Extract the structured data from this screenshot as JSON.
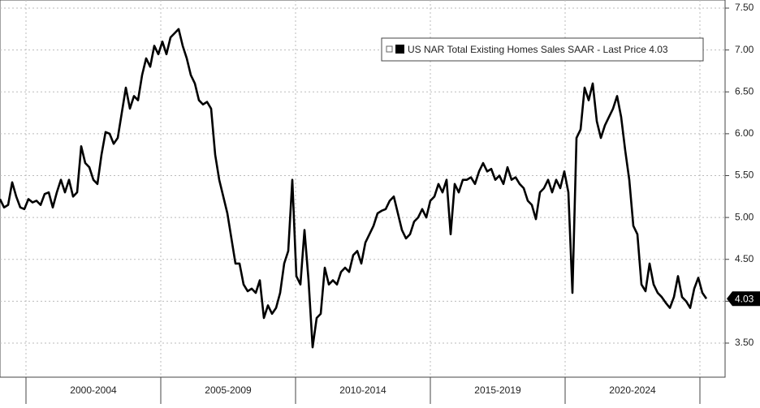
{
  "chart_data": {
    "type": "line",
    "periods": [
      "2000-2004",
      "2005-2009",
      "2010-2014",
      "2015-2019",
      "2020-2024"
    ],
    "series": [
      {
        "name": "US NAR Total Existing Homes Sales SAAR - Last Price 4.03",
        "color": "#000000",
        "values": [
          5.22,
          5.12,
          5.15,
          5.42,
          5.25,
          5.12,
          5.1,
          5.22,
          5.18,
          5.2,
          5.15,
          5.28,
          5.3,
          5.12,
          5.3,
          5.45,
          5.3,
          5.45,
          5.25,
          5.3,
          5.85,
          5.65,
          5.6,
          5.45,
          5.4,
          5.75,
          6.02,
          6.0,
          5.88,
          5.95,
          6.25,
          6.55,
          6.3,
          6.45,
          6.4,
          6.7,
          6.9,
          6.8,
          7.05,
          6.95,
          7.1,
          6.95,
          7.15,
          7.2,
          7.25,
          7.05,
          6.9,
          6.7,
          6.6,
          6.4,
          6.35,
          6.38,
          6.3,
          5.75,
          5.45,
          5.25,
          5.05,
          4.75,
          4.45,
          4.45,
          4.2,
          4.12,
          4.15,
          4.1,
          4.25,
          3.8,
          3.95,
          3.85,
          3.92,
          4.1,
          4.45,
          4.6,
          5.45,
          4.3,
          4.2,
          4.85,
          4.25,
          3.45,
          3.8,
          3.85,
          4.4,
          4.2,
          4.25,
          4.2,
          4.35,
          4.4,
          4.35,
          4.55,
          4.6,
          4.45,
          4.7,
          4.8,
          4.9,
          5.05,
          5.08,
          5.1,
          5.2,
          5.25,
          5.05,
          4.85,
          4.75,
          4.8,
          4.95,
          5.0,
          5.1,
          5.0,
          5.2,
          5.25,
          5.4,
          5.3,
          5.45,
          4.8,
          5.4,
          5.3,
          5.45,
          5.45,
          5.48,
          5.4,
          5.55,
          5.65,
          5.55,
          5.58,
          5.45,
          5.5,
          5.4,
          5.6,
          5.45,
          5.48,
          5.4,
          5.35,
          5.2,
          5.15,
          4.98,
          5.3,
          5.35,
          5.45,
          5.3,
          5.45,
          5.35,
          5.55,
          5.3,
          4.1,
          5.95,
          6.05,
          6.55,
          6.4,
          6.6,
          6.15,
          5.95,
          6.1,
          6.2,
          6.3,
          6.45,
          6.2,
          5.8,
          5.45,
          4.9,
          4.8,
          4.2,
          4.12,
          4.45,
          4.2,
          4.1,
          4.05,
          3.98,
          3.92,
          4.05,
          4.3,
          4.05,
          4.0,
          3.92,
          4.15,
          4.28,
          4.1,
          4.03
        ]
      }
    ],
    "ylim": [
      3.093,
      7.597
    ],
    "yticks": [
      {
        "value": 3.5,
        "label": "3.50"
      },
      {
        "value": 4,
        "label": "4.00"
      },
      {
        "value": 4.5,
        "label": "4.50"
      },
      {
        "value": 5,
        "label": "5.00"
      },
      {
        "value": 5.5,
        "label": "5.50"
      },
      {
        "value": 6,
        "label": "6.00"
      },
      {
        "value": 6.5,
        "label": "6.50"
      },
      {
        "value": 7,
        "label": "7.00"
      },
      {
        "value": 7.5,
        "label": "7.50"
      }
    ],
    "grid": true
  }
}
